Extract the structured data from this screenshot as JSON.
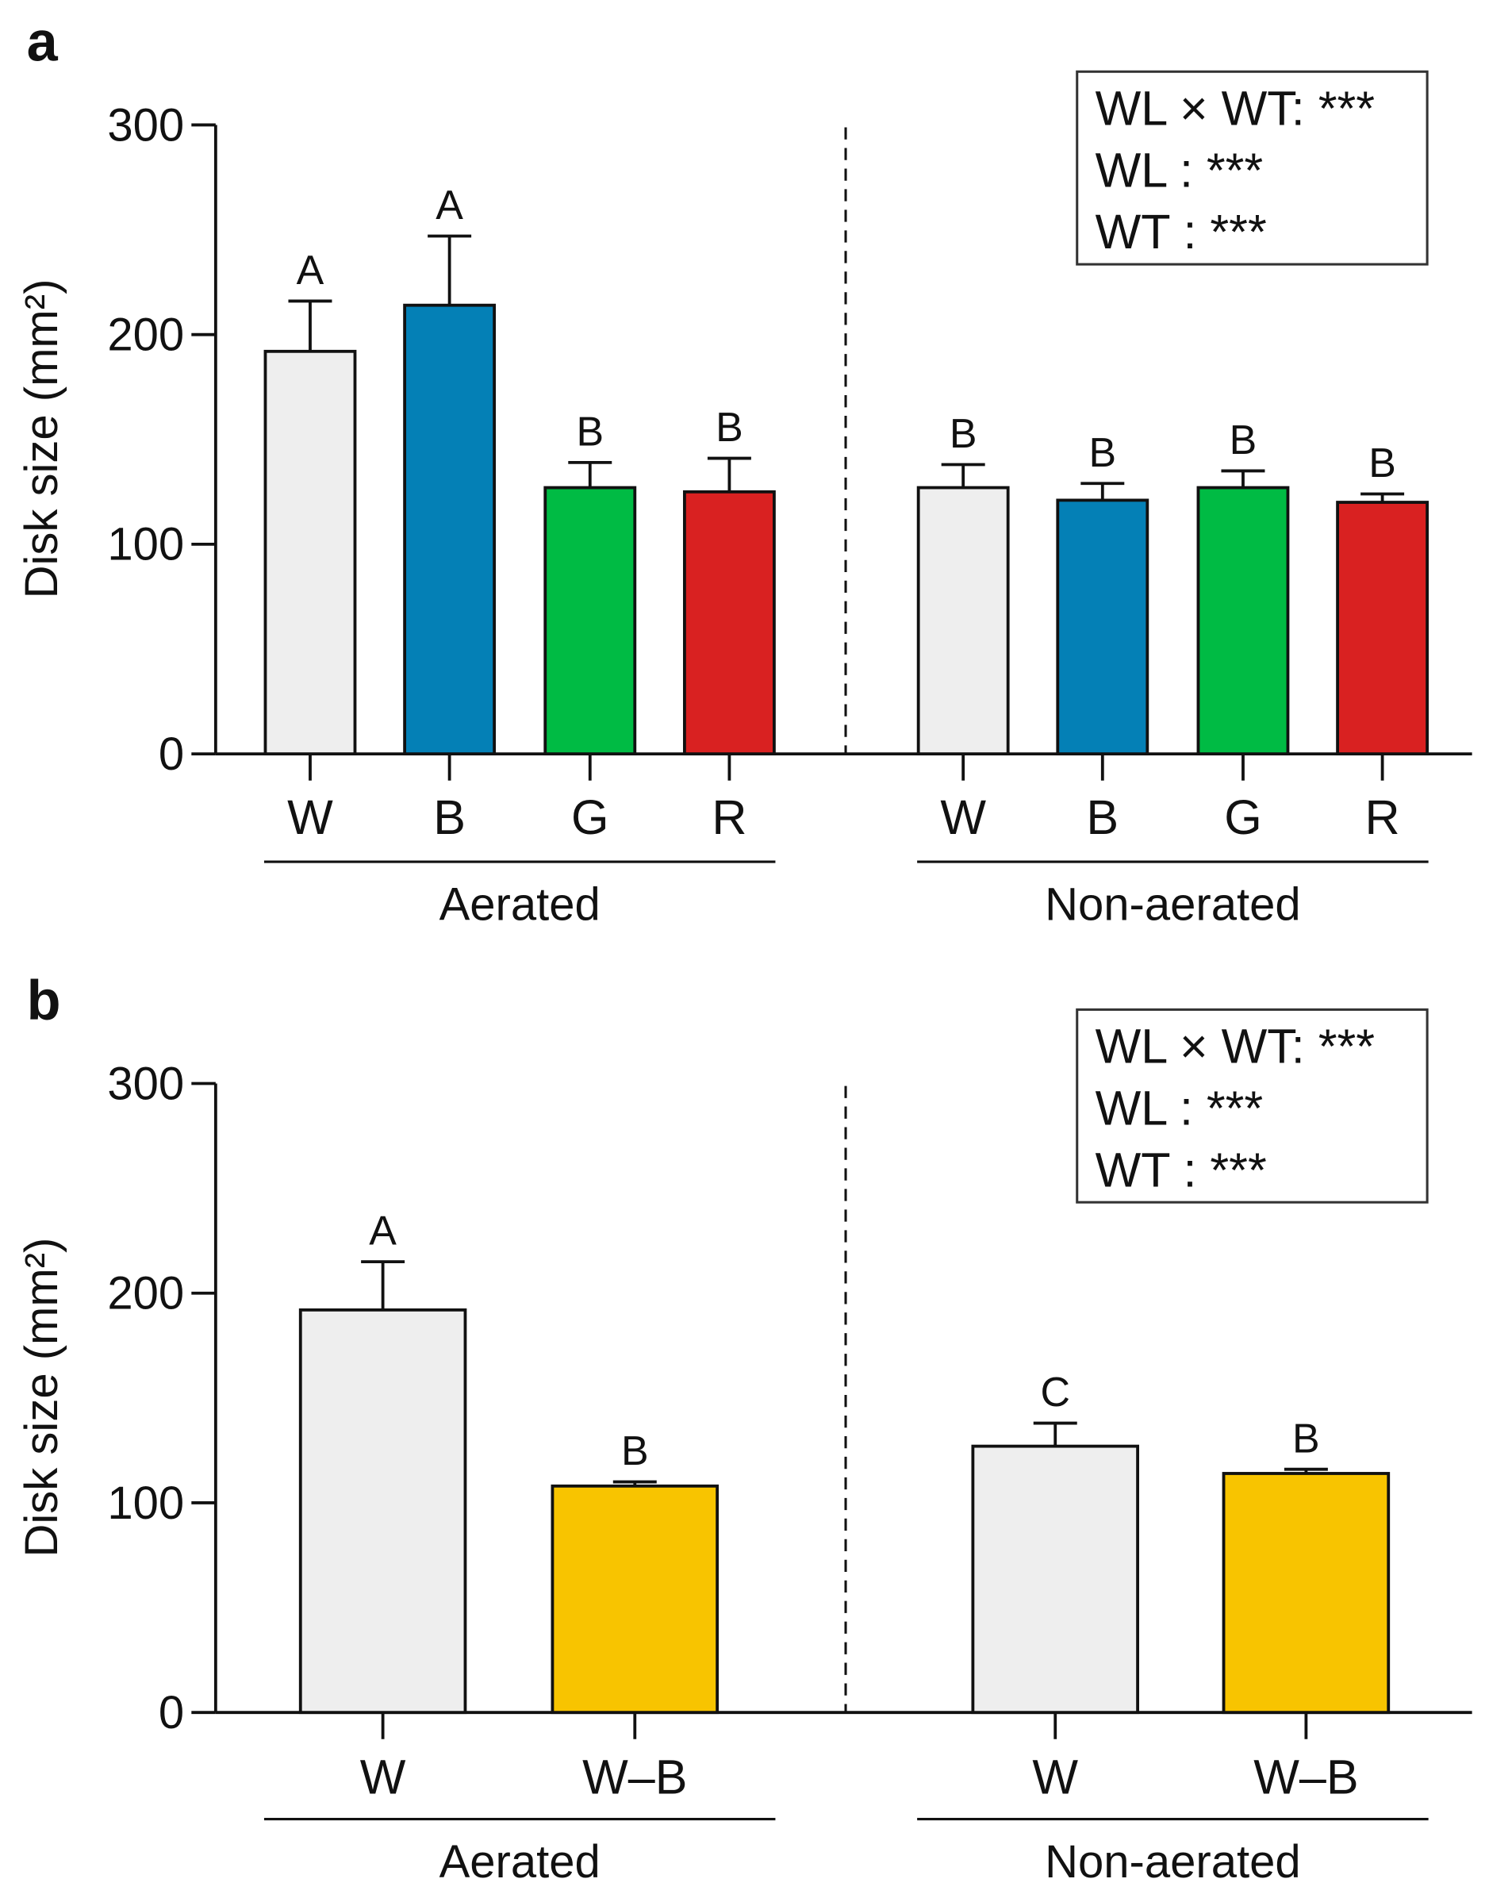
{
  "colors": {
    "W": "#eeeeee",
    "B": "#0480b6",
    "G": "#00bb44",
    "R": "#d92121",
    "W-B": "#f8c400",
    "axis": "#111111"
  },
  "chart_data": [
    {
      "panel": "a",
      "type": "bar",
      "ylabel": "Disk size (mm²)",
      "ylim": [
        0,
        300
      ],
      "yticks": [
        "0",
        "100",
        "200",
        "300"
      ],
      "groups": [
        {
          "label": "Aerated",
          "categories": [
            "W",
            "B",
            "G",
            "R"
          ],
          "values": [
            192,
            214,
            127,
            125
          ],
          "errors": [
            24,
            33,
            12,
            16
          ],
          "letters": [
            "A",
            "A",
            "B",
            "B"
          ]
        },
        {
          "label": "Non-aerated",
          "categories": [
            "W",
            "B",
            "G",
            "R"
          ],
          "values": [
            127,
            121,
            127,
            120
          ],
          "errors": [
            11,
            8,
            8,
            4
          ],
          "letters": [
            "B",
            "B",
            "B",
            "B"
          ]
        }
      ],
      "annotation": [
        "WL × WT: ***",
        "WL : ***",
        "WT : ***"
      ]
    },
    {
      "panel": "b",
      "type": "bar",
      "ylabel": "Disk size (mm²)",
      "ylim": [
        0,
        300
      ],
      "yticks": [
        "0",
        "100",
        "200",
        "300"
      ],
      "groups": [
        {
          "label": "Aerated",
          "categories": [
            "W",
            "W–B"
          ],
          "values": [
            192,
            108
          ],
          "errors": [
            23,
            2
          ],
          "letters": [
            "A",
            "B"
          ]
        },
        {
          "label": "Non-aerated",
          "categories": [
            "W",
            "W–B"
          ],
          "values": [
            127,
            114
          ],
          "errors": [
            11,
            2
          ],
          "letters": [
            "C",
            "B"
          ]
        }
      ],
      "annotation": [
        "WL × WT: ***",
        "WL : ***",
        "WT : ***"
      ]
    }
  ]
}
